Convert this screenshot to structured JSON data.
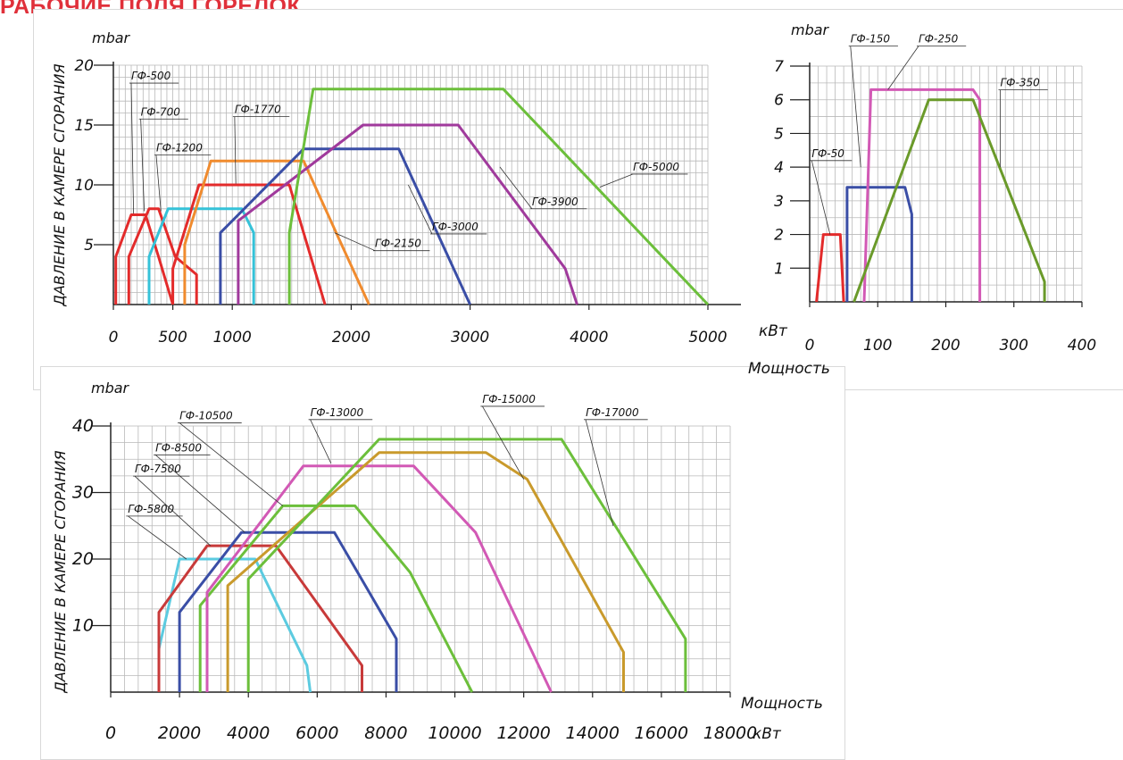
{
  "page_title": "РАБОЧИЕ ПОЛЯ ГОРЕЛОК",
  "chart_data": [
    {
      "id": "a",
      "type": "line",
      "ylabel": "ДАВЛЕНИЕ В КАМЕРЕ СГОРАНИЯ",
      "yunit": "mbar",
      "xunit": "кВт",
      "xlim": [
        0,
        5000
      ],
      "ylim": [
        0,
        20
      ],
      "xticks": [
        0,
        500,
        1000,
        2000,
        3000,
        4000,
        5000
      ],
      "yticks": [
        5,
        10,
        15,
        20
      ],
      "grid": true,
      "series": [
        {
          "name": "ГФ-500",
          "color": "#e32b2b",
          "points": [
            [
              20,
              0
            ],
            [
              20,
              4
            ],
            [
              150,
              7.5
            ],
            [
              270,
              7.5
            ],
            [
              380,
              4
            ],
            [
              500,
              0
            ]
          ],
          "label_at": [
            150,
            18.8
          ],
          "leader_to": [
            170,
            7.6
          ]
        },
        {
          "name": "ГФ-700",
          "color": "#e32b2b",
          "points": [
            [
              130,
              0
            ],
            [
              130,
              4
            ],
            [
              300,
              8
            ],
            [
              380,
              8
            ],
            [
              520,
              4
            ],
            [
              700,
              2.5
            ],
            [
              700,
              0
            ]
          ],
          "label_at": [
            230,
            15.8
          ],
          "leader_to": [
            260,
            7.8
          ]
        },
        {
          "name": "ГФ-1200",
          "color": "#35c2d8",
          "points": [
            [
              300,
              0
            ],
            [
              300,
              4
            ],
            [
              460,
              8
            ],
            [
              1080,
              8
            ],
            [
              1180,
              6
            ],
            [
              1180,
              0
            ]
          ],
          "label_at": [
            360,
            12.8
          ],
          "leader_to": [
            400,
            7.8
          ]
        },
        {
          "name": "ГФ-1770",
          "color": "#e32b2b",
          "points": [
            [
              500,
              0
            ],
            [
              500,
              3
            ],
            [
              720,
              10
            ],
            [
              1480,
              10
            ],
            [
              1780,
              0
            ]
          ],
          "label_at": [
            1020,
            16
          ],
          "leader_to": [
            1030,
            10.1
          ]
        },
        {
          "name": "ГФ-2150",
          "color": "#f08b2e",
          "points": [
            [
              600,
              0
            ],
            [
              600,
              5
            ],
            [
              820,
              12
            ],
            [
              1600,
              12
            ],
            [
              1920,
              5
            ],
            [
              2150,
              0
            ]
          ],
          "label_at": [
            2200,
            4.8
          ],
          "leader_to": [
            1860,
            6
          ]
        },
        {
          "name": "ГФ-3000",
          "color": "#3a4ea6",
          "points": [
            [
              900,
              0
            ],
            [
              900,
              6
            ],
            [
              1600,
              13
            ],
            [
              2400,
              13
            ],
            [
              3000,
              0
            ]
          ],
          "label_at": [
            2680,
            6.2
          ],
          "leader_to": [
            2480,
            10
          ]
        },
        {
          "name": "ГФ-3900",
          "color": "#a03a9c",
          "points": [
            [
              1050,
              0
            ],
            [
              1050,
              7
            ],
            [
              2100,
              15
            ],
            [
              2900,
              15
            ],
            [
              3800,
              3
            ],
            [
              3900,
              0
            ]
          ],
          "label_at": [
            3520,
            8.3
          ],
          "leader_to": [
            3250,
            11.5
          ]
        },
        {
          "name": "ГФ-5000",
          "color": "#6cbf3b",
          "points": [
            [
              1480,
              0
            ],
            [
              1480,
              6
            ],
            [
              1680,
              18
            ],
            [
              3280,
              18
            ],
            [
              5000,
              0
            ]
          ],
          "label_at": [
            4370,
            11.2
          ],
          "leader_to": [
            4090,
            9.8
          ]
        }
      ]
    },
    {
      "id": "b",
      "type": "line",
      "yunit": "mbar",
      "xlabel": "Мощность",
      "xlim": [
        0,
        400
      ],
      "ylim": [
        0,
        7
      ],
      "xticks": [
        0,
        100,
        200,
        300,
        400
      ],
      "yticks": [
        1,
        2,
        3,
        4,
        5,
        6,
        7
      ],
      "grid": true,
      "series": [
        {
          "name": "ГФ-50",
          "color": "#e32b2b",
          "points": [
            [
              10,
              0
            ],
            [
              20,
              2
            ],
            [
              45,
              2
            ],
            [
              50,
              0
            ]
          ],
          "label_at": [
            3,
            4.3
          ],
          "leader_to": [
            30,
            2
          ]
        },
        {
          "name": "ГФ-150",
          "color": "#3a4ea6",
          "points": [
            [
              55,
              0
            ],
            [
              55,
              3.4
            ],
            [
              140,
              3.4
            ],
            [
              150,
              2.6
            ],
            [
              150,
              0
            ]
          ],
          "label_at": [
            60,
            7.7
          ],
          "leader_to": [
            75,
            4
          ]
        },
        {
          "name": "ГФ-250",
          "color": "#d259b5",
          "points": [
            [
              80,
              0
            ],
            [
              90,
              6.3
            ],
            [
              240,
              6.3
            ],
            [
              250,
              6
            ],
            [
              250,
              0
            ]
          ],
          "label_at": [
            160,
            7.7
          ],
          "leader_to": [
            115,
            6.3
          ]
        },
        {
          "name": "ГФ-350",
          "color": "#6a9a2a",
          "points": [
            [
              65,
              0
            ],
            [
              175,
              6
            ],
            [
              240,
              6
            ],
            [
              345,
              0.6
            ],
            [
              345,
              0
            ]
          ],
          "label_at": [
            280,
            6.4
          ],
          "leader_to": [
            280,
            4
          ]
        }
      ]
    },
    {
      "id": "c",
      "type": "line",
      "ylabel": "ДАВЛЕНИЕ В КАМЕРЕ СГОРАНИЯ",
      "yunit": "mbar",
      "xlabel": "Мощность",
      "xunit": "кВт",
      "xlim": [
        0,
        18000
      ],
      "ylim": [
        0,
        40
      ],
      "xticks": [
        0,
        2000,
        4000,
        6000,
        8000,
        10000,
        12000,
        14000,
        16000,
        18000
      ],
      "yticks": [
        10,
        20,
        30,
        40
      ],
      "grid": true,
      "series": [
        {
          "name": "ГФ-5800",
          "color": "#5ccbe0",
          "points": [
            [
              1400,
              6.5
            ],
            [
              2000,
              20
            ],
            [
              4200,
              20
            ],
            [
              5700,
              4
            ],
            [
              5800,
              0
            ]
          ],
          "label_at": [
            500,
            27
          ],
          "leader_to": [
            2200,
            20
          ]
        },
        {
          "name": "ГФ-7500",
          "color": "#c83a3a",
          "points": [
            [
              1400,
              0
            ],
            [
              1400,
              12
            ],
            [
              2800,
              22
            ],
            [
              4800,
              22
            ],
            [
              7300,
              4
            ],
            [
              7300,
              0
            ]
          ],
          "label_at": [
            700,
            33
          ],
          "leader_to": [
            2900,
            22
          ]
        },
        {
          "name": "ГФ-8500",
          "color": "#3a4ea6",
          "points": [
            [
              2000,
              0
            ],
            [
              2000,
              12
            ],
            [
              3800,
              24
            ],
            [
              6500,
              24
            ],
            [
              8300,
              8
            ],
            [
              8300,
              0
            ]
          ],
          "label_at": [
            1300,
            36.2
          ],
          "leader_to": [
            3900,
            24
          ]
        },
        {
          "name": "ГФ-10500",
          "color": "#6cbf3b",
          "points": [
            [
              2600,
              0
            ],
            [
              2600,
              13
            ],
            [
              5000,
              28
            ],
            [
              7100,
              28
            ],
            [
              8700,
              18
            ],
            [
              10500,
              0
            ]
          ],
          "label_at": [
            2000,
            41
          ],
          "leader_to": [
            5000,
            28
          ]
        },
        {
          "name": "ГФ-13000",
          "color": "#d259b5",
          "points": [
            [
              2800,
              0
            ],
            [
              2800,
              15
            ],
            [
              5600,
              34
            ],
            [
              8800,
              34
            ],
            [
              10600,
              24
            ],
            [
              12800,
              0
            ]
          ],
          "label_at": [
            5800,
            41.5
          ],
          "leader_to": [
            6400,
            34.4
          ]
        },
        {
          "name": "ГФ-15000",
          "color": "#c99a2c",
          "points": [
            [
              3400,
              0
            ],
            [
              3400,
              16
            ],
            [
              7800,
              36
            ],
            [
              10900,
              36
            ],
            [
              12100,
              32
            ],
            [
              14900,
              6
            ],
            [
              14900,
              0
            ]
          ],
          "label_at": [
            10800,
            43.5
          ],
          "leader_to": [
            12000,
            32
          ]
        },
        {
          "name": "ГФ-17000",
          "color": "#6cbf3b",
          "points": [
            [
              4000,
              0
            ],
            [
              4000,
              17
            ],
            [
              7800,
              38
            ],
            [
              13100,
              38
            ],
            [
              16700,
              8
            ],
            [
              16700,
              0
            ]
          ],
          "label_at": [
            13800,
            41.5
          ],
          "leader_to": [
            14600,
            25
          ]
        }
      ]
    }
  ]
}
